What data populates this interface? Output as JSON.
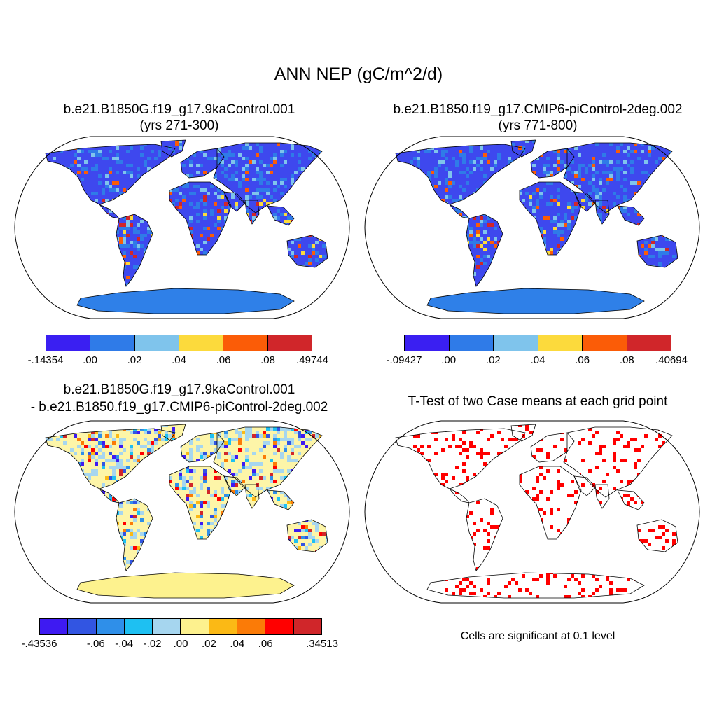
{
  "title": "ANN NEP (gC/m^2/d)",
  "panels": [
    {
      "title_line1": "b.e21.B1850G.f19_g17.9kaControl.001",
      "title_line2": "(yrs 271-300)",
      "colorbar": {
        "colors": [
          "#3a1ff2",
          "#2f7be8",
          "#7fc4ec",
          "#fcda3c",
          "#fb5c07",
          "#d0262a"
        ],
        "labels": [
          "-.14354",
          ".00",
          ".02",
          ".04",
          ".06",
          ".08",
          ".49744"
        ]
      }
    },
    {
      "title_line1": "b.e21.B1850.f19_g17.CMIP6-piControl-2deg.002",
      "title_line2": "(yrs 771-800)",
      "colorbar": {
        "colors": [
          "#3a1ff2",
          "#2f7be8",
          "#7fc4ec",
          "#fcda3c",
          "#fb5c07",
          "#d0262a"
        ],
        "labels": [
          "-.09427",
          ".00",
          ".02",
          ".04",
          ".06",
          ".08",
          ".40694"
        ]
      }
    },
    {
      "title_line1": "b.e21.B1850G.f19_g17.9kaControl.001",
      "title_line2": "- b.e21.B1850.f19_g17.CMIP6-piControl-2deg.002",
      "colorbar": {
        "colors": [
          "#3e1af2",
          "#3255e2",
          "#2f8fe9",
          "#1ec0f2",
          "#a6d6ef",
          "#fdf18e",
          "#fbb915",
          "#fb7b07",
          "#ff0000",
          "#d0262a"
        ],
        "labels": [
          "-.43536",
          "",
          "-.06",
          "-.04",
          "-.02",
          ".00",
          ".02",
          ".04",
          ".06",
          "",
          ".34513"
        ]
      }
    },
    {
      "title": "T-Test of two Case means at each grid point",
      "note": "Cells are significant at 0.1 level",
      "significance_color": "#ff0000"
    }
  ],
  "colors": {
    "land_fill_p1": "#3e48ee",
    "land_fill_p2": "#3e48ee",
    "land_fill_p3": "#fdf5a8",
    "antarctica_p1": "#2f80e8",
    "antarctica_p3": "#fdf28e"
  }
}
